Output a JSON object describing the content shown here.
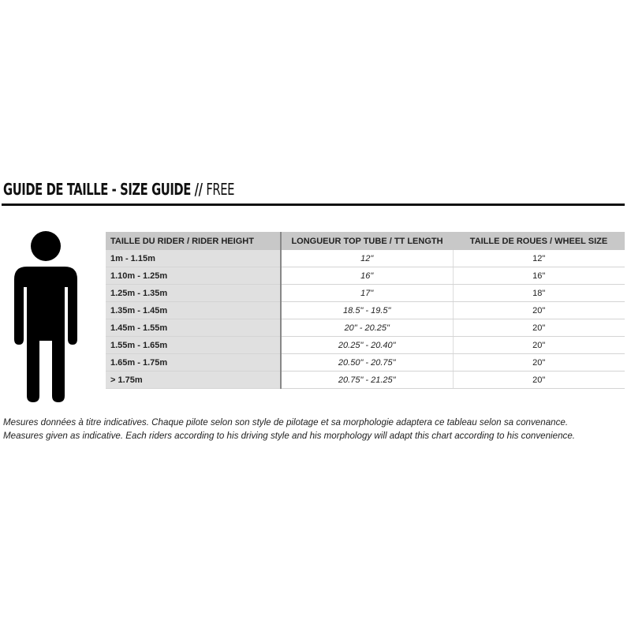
{
  "title": {
    "bold": "GUIDE DE TAILLE - SIZE GUIDE //",
    "light": "FREE"
  },
  "table": {
    "headers": [
      "TAILLE DU RIDER / RIDER HEIGHT",
      "LONGUEUR TOP TUBE / TT LENGTH",
      "TAILLE DE ROUES / WHEEL SIZE"
    ],
    "rows": [
      [
        "1m - 1.15m",
        "12\"",
        "12\""
      ],
      [
        "1.10m - 1.25m",
        "16\"",
        "16\""
      ],
      [
        "1.25m - 1.35m",
        "17\"",
        "18\""
      ],
      [
        "1.35m - 1.45m",
        "18.5\" - 19.5\"",
        "20\""
      ],
      [
        "1.45m - 1.55m",
        "20\" - 20.25\"",
        "20\""
      ],
      [
        "1.55m - 1.65m",
        "20.25\" - 20.40\"",
        "20\""
      ],
      [
        "1.65m - 1.75m",
        "20.50\" - 20.75\"",
        "20\""
      ],
      [
        "> 1.75m",
        "20.75\" - 21.25\"",
        "20\""
      ]
    ]
  },
  "notes": [
    "Mesures données à titre indicatives. Chaque pilote selon son style de pilotage et sa morphologie adaptera ce tableau selon sa convenance.",
    "Measures given as indicative. Each riders according to his driving style and his morphology will adapt this chart according to his convenience."
  ],
  "icons": {
    "figure": "person-silhouette-icon"
  }
}
